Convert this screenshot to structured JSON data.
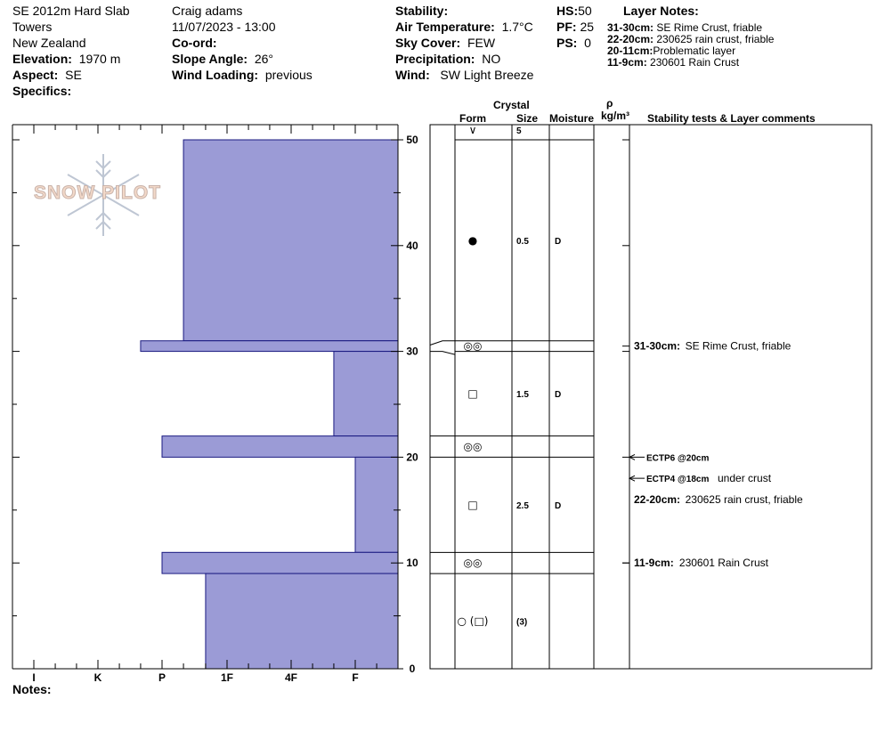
{
  "header": {
    "col1": {
      "line1": "SE 2012m Hard Slab",
      "line2": "Towers",
      "line3": "New Zealand",
      "elevation_label": "Elevation:",
      "elevation_value": "1970 m",
      "aspect_label": "Aspect:",
      "aspect_value": "SE",
      "specifics_label": "Specifics:"
    },
    "col2": {
      "observer": "Craig adams",
      "datetime": "11/07/2023 - 13:00",
      "coord_label": "Co-ord:",
      "slope_label": "Slope Angle:",
      "slope_value": "26°",
      "wind_loading_label": "Wind Loading:",
      "wind_loading_value": "previous"
    },
    "col3": {
      "stability_label": "Stability:",
      "air_temp_label": "Air Temperature:",
      "air_temp_value": "1.7°C",
      "sky_label": "Sky Cover:",
      "sky_value": "FEW",
      "precip_label": "Precipitation:",
      "precip_value": "NO",
      "wind_label": "Wind:",
      "wind_value": "SW Light Breeze"
    },
    "col4": {
      "hs_label": "HS:",
      "hs_value": "50",
      "pf_label": "PF:",
      "pf_value": "25",
      "ps_label": "PS:",
      "ps_value": "0"
    },
    "layer_notes": {
      "title": "Layer Notes:",
      "items": [
        {
          "range": "31-30cm:",
          "text": "SE Rime Crust, friable"
        },
        {
          "range": "22-20cm:",
          "text": "230625 rain crust, friable"
        },
        {
          "range": "20-11cm:",
          "text": "Problematic layer"
        },
        {
          "range": "11-9cm:",
          "text": "230601 Rain Crust"
        }
      ]
    }
  },
  "columns": {
    "crystal": "Crystal",
    "form": "Form",
    "size": "Size",
    "moisture": "Moisture",
    "rho": "ρ",
    "density": "kg/m³",
    "comments": "Stability tests & Layer comments"
  },
  "logo_text": "SNOW PILOT",
  "notes_label": "Notes:",
  "colors": {
    "fill": "#9b9bd6",
    "stroke": "#1a1a80"
  },
  "chart_data": {
    "type": "bar",
    "orientation": "horizontal",
    "description_free": true,
    "y_axis": {
      "ticks": [
        0,
        10,
        20,
        30,
        40,
        50
      ],
      "ylim": [
        0,
        50
      ]
    },
    "x_axis": {
      "ticks": [
        "I",
        "K",
        "P",
        "1F",
        "4F",
        "F"
      ],
      "direction": "hardness increasing to the left"
    },
    "hardness_layers": [
      {
        "top": 50,
        "bottom": 31,
        "hardness": "P-"
      },
      {
        "top": 31,
        "bottom": 30,
        "hardness": "P+"
      },
      {
        "top": 30,
        "bottom": 22,
        "hardness": "F+"
      },
      {
        "top": 22,
        "bottom": 20,
        "hardness": "P"
      },
      {
        "top": 20,
        "bottom": 11,
        "hardness": "F"
      },
      {
        "top": 11,
        "bottom": 9,
        "hardness": "P"
      },
      {
        "top": 9,
        "bottom": 0,
        "hardness": "1F+"
      }
    ],
    "crystal_layers": [
      {
        "top": 50,
        "bottom": 50,
        "form": "∨",
        "size": "5",
        "moisture": ""
      },
      {
        "top": 50,
        "bottom": 31,
        "form": "●",
        "size": "0.5",
        "moisture": "D"
      },
      {
        "top": 31,
        "bottom": 30,
        "form": "◎◎",
        "size": "",
        "moisture": ""
      },
      {
        "top": 30,
        "bottom": 22,
        "form": "□",
        "size": "1.5",
        "moisture": "D"
      },
      {
        "top": 22,
        "bottom": 20,
        "form": "◎◎",
        "size": "",
        "moisture": ""
      },
      {
        "top": 20,
        "bottom": 11,
        "form": "□",
        "size": "2.5",
        "moisture": "D"
      },
      {
        "top": 11,
        "bottom": 9,
        "form": "◎◎",
        "size": "",
        "moisture": ""
      },
      {
        "top": 9,
        "bottom": 0,
        "form": "○ (□)",
        "size": "(3)",
        "moisture": ""
      }
    ],
    "tests": [
      {
        "depth": 20,
        "label": "ECTP6 @20cm",
        "note": ""
      },
      {
        "depth": 18,
        "label": "ECTP4 @18cm",
        "note": "under crust"
      }
    ],
    "layer_comments": [
      {
        "depth": 30.5,
        "range": "31-30cm:",
        "text": "SE Rime Crust, friable"
      },
      {
        "depth": 16,
        "range": "22-20cm:",
        "text": "230625 rain crust, friable"
      },
      {
        "depth": 10,
        "range": "11-9cm:",
        "text": "230601 Rain Crust"
      }
    ]
  }
}
